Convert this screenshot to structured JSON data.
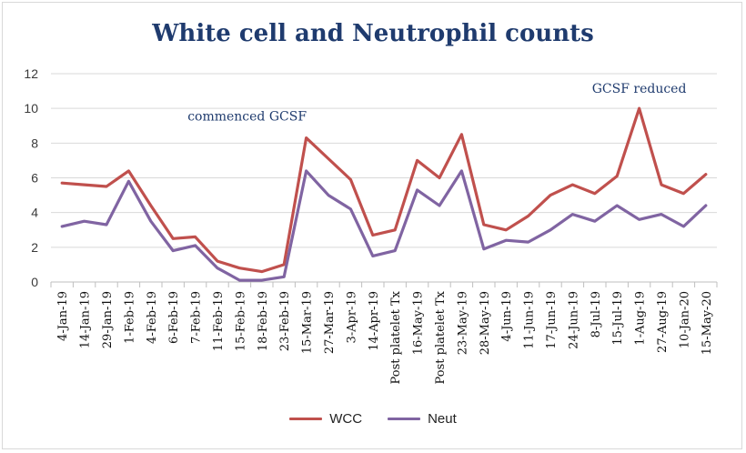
{
  "chart_data": {
    "type": "line",
    "title": "White cell and Neutrophil counts",
    "categories": [
      "4-Jan-19",
      "14-Jan-19",
      "29-Jan-19",
      "1-Feb-19",
      "4-Feb-19",
      "6-Feb-19",
      "7-Feb-19",
      "11-Feb-19",
      "15-Feb-19",
      "18-Feb-19",
      "23-Feb-19",
      "15-Mar-19",
      "27-Mar-19",
      "3-Apr-19",
      "14-Apr-19",
      "Post platelet Tx",
      "16-May-19",
      "Post platelet Tx",
      "23-May-19",
      "28-May-19",
      "4-Jun-19",
      "11-Jun-19",
      "17-Jun-19",
      "24-Jun-19",
      "8-Jul-19",
      "15-Jul-19",
      "1-Aug-19",
      "27-Aug-19",
      "10-Jan-20",
      "15-May-20"
    ],
    "series": [
      {
        "name": "WCC",
        "color": "#c0504d",
        "values": [
          5.7,
          5.6,
          5.5,
          6.4,
          4.4,
          2.5,
          2.6,
          1.2,
          0.8,
          0.6,
          1.0,
          8.3,
          7.1,
          5.9,
          2.7,
          3.0,
          7.0,
          6.0,
          8.5,
          3.3,
          3.0,
          3.8,
          5.0,
          5.6,
          5.1,
          6.1,
          10.0,
          5.6,
          5.1,
          6.2
        ]
      },
      {
        "name": "Neut",
        "color": "#8064a2",
        "values": [
          3.2,
          3.5,
          3.3,
          5.8,
          3.5,
          1.8,
          2.1,
          0.8,
          0.1,
          0.1,
          0.3,
          6.4,
          5.0,
          4.2,
          1.5,
          1.8,
          5.3,
          4.4,
          6.4,
          1.9,
          2.4,
          2.3,
          3.0,
          3.9,
          3.5,
          4.4,
          3.6,
          3.9,
          3.2,
          4.4
        ]
      }
    ],
    "ylim": [
      0,
      12
    ],
    "yticks": [
      0,
      2,
      4,
      6,
      8,
      10,
      12
    ],
    "grid": true,
    "legend": "bottom",
    "annotations": [
      {
        "text": "commenced GCSF",
        "near_category": "6-Feb-19",
        "y": 9.3
      },
      {
        "text": "GCSF reduced",
        "near_category": "1-Aug-19",
        "y": 10.9
      }
    ]
  }
}
